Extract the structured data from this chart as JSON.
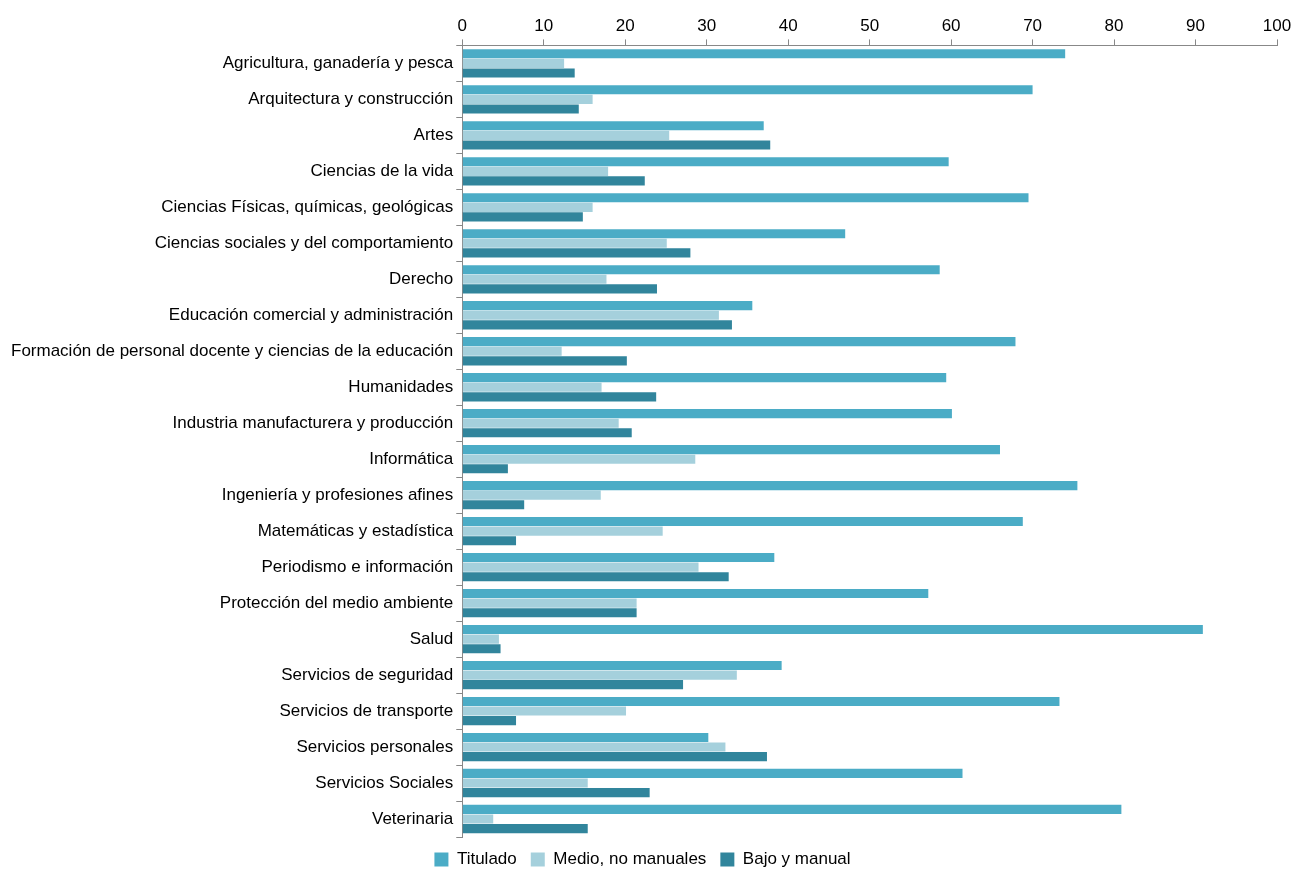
{
  "chart_data": {
    "type": "bar",
    "orientation": "horizontal",
    "categories": [
      "Agricultura, ganadería y pesca",
      "Arquitectura y construcción",
      "Artes",
      "Ciencias de la vida",
      "Ciencias Físicas, químicas, geológicas",
      "Ciencias sociales y del comportamiento",
      "Derecho",
      "Educación comercial y administración",
      "Formación de personal docente y ciencias de la educación",
      "Humanidades",
      "Industria manufacturera y producción",
      "Informática",
      "Ingeniería y profesiones afines",
      "Matemáticas y estadística",
      "Periodismo e información",
      "Protección del medio ambiente",
      "Salud",
      "Servicios de seguridad",
      "Servicios de transporte",
      "Servicios personales",
      "Servicios Sociales",
      "Veterinaria"
    ],
    "series": [
      {
        "name": "Titulado",
        "color": "#4bacc6",
        "values": [
          74,
          70,
          37,
          59.7,
          69.5,
          47,
          58.6,
          35.6,
          67.9,
          59.4,
          60.1,
          66,
          75.5,
          68.8,
          38.3,
          57.2,
          90.9,
          39.2,
          73.3,
          30.2,
          61.4,
          80.9
        ]
      },
      {
        "name": "Medio, no manuales",
        "color": "#a5d0dc",
        "values": [
          12.5,
          16,
          25.4,
          17.9,
          16,
          25.1,
          17.7,
          31.5,
          12.2,
          17.1,
          19.2,
          28.6,
          17,
          24.6,
          29,
          21.4,
          4.5,
          33.7,
          20.1,
          32.3,
          15.4,
          3.8
        ]
      },
      {
        "name": "Bajo y manual",
        "color": "#31859c",
        "values": [
          13.8,
          14.3,
          37.8,
          22.4,
          14.8,
          28,
          23.9,
          33.1,
          20.2,
          23.8,
          20.8,
          5.6,
          7.6,
          6.6,
          32.7,
          21.4,
          4.7,
          27.1,
          6.6,
          37.4,
          23,
          15.4
        ]
      }
    ],
    "xlim": [
      0,
      100
    ],
    "xticks": [
      0,
      10,
      20,
      30,
      40,
      50,
      60,
      70,
      80,
      90,
      100
    ],
    "grid": false,
    "legend": "bottom"
  }
}
